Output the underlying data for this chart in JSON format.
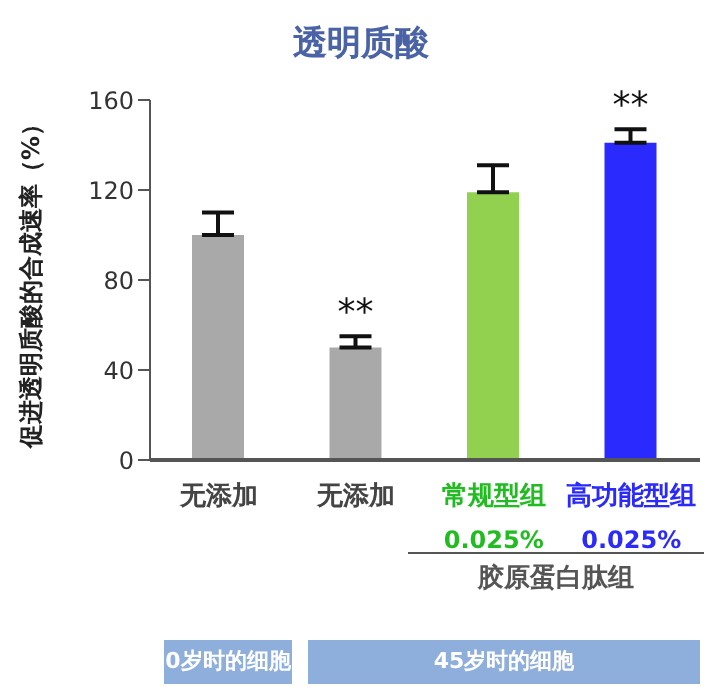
{
  "chart_data": {
    "type": "bar",
    "title": "透明质酸",
    "ylabel": "促进透明质酸的合成速率（%）",
    "categories": [
      "无添加",
      "无添加",
      "常规型组",
      "高功能型组"
    ],
    "values": [
      100,
      50,
      119,
      141
    ],
    "colors": [
      "#a9a9a9",
      "#a9a9a9",
      "#92d050",
      "#2a2aff"
    ],
    "errors": [
      [
        100,
        110
      ],
      [
        50,
        55
      ],
      [
        119,
        131
      ],
      [
        141,
        147
      ]
    ],
    "ylim": [
      0,
      160
    ],
    "yticks": [
      0,
      40,
      80,
      120,
      160
    ],
    "annotations": [
      "**",
      "**",
      "0.025%",
      "0.025%",
      "胶原蛋白肽组",
      "0岁时的细胞",
      "45岁时的细胞"
    ]
  }
}
